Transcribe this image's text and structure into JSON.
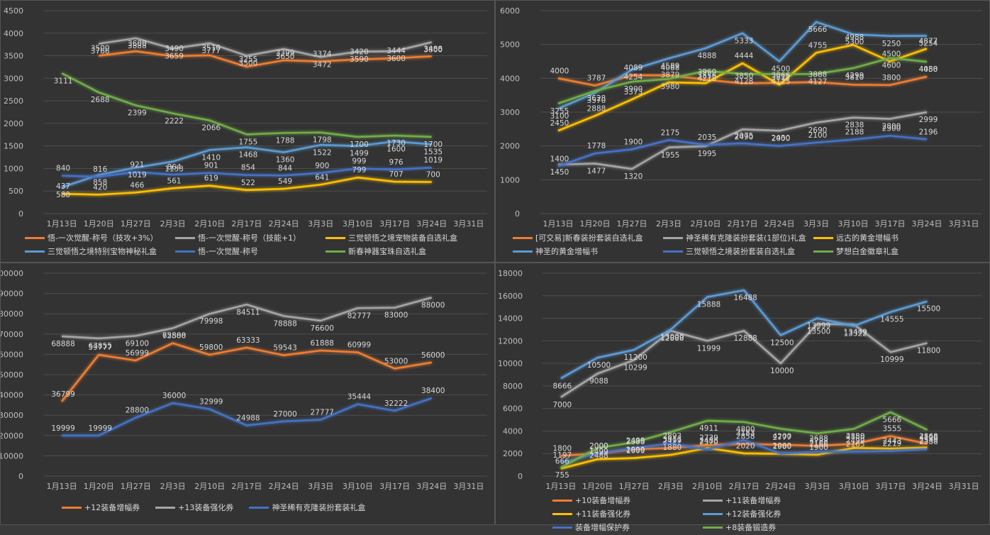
{
  "chart_data": [
    {
      "type": "line",
      "categories": [
        "1月13日",
        "1月20日",
        "1月27日",
        "2月3日",
        "2月10日",
        "2月17日",
        "2月24日",
        "3月3日",
        "3月10日",
        "3月17日",
        "3月24日",
        "3月31日"
      ],
      "ylim": [
        0,
        4500
      ],
      "yticks": [
        0,
        500,
        1000,
        1500,
        2000,
        2500,
        3000,
        3500,
        4000,
        4500
      ],
      "series": [
        {
          "name": "悟-一次觉醒-称号（技攻+3%）",
          "color": "#ed7d31",
          "values": [
            null,
            3500,
            3600,
            3490,
            3510,
            3255,
            3399,
            3374,
            3420,
            3444,
            3488,
            null
          ]
        },
        {
          "name": "悟-一次觉醒-称号（技能+1）",
          "color": "#a5a5a5",
          "values": [
            null,
            3766,
            3888,
            3659,
            3777,
            3500,
            3650,
            3472,
            3590,
            3600,
            3800,
            null
          ]
        },
        {
          "name": "三觉顿悟之境宠物装备自选礼盒",
          "color": "#ffc000",
          "values": [
            437,
            420,
            466,
            561,
            619,
            522,
            549,
            641,
            799,
            707,
            700,
            null
          ]
        },
        {
          "name": "三觉顿悟之境特别宝物神秘礼盒",
          "color": "#5b9bd5",
          "values": [
            580,
            858,
            1019,
            1153,
            1410,
            1468,
            1360,
            1522,
            1499,
            1600,
            1535,
            null
          ]
        },
        {
          "name": "悟-一次觉醒-称号",
          "color": "#4472c4",
          "values": [
            840,
            816,
            921,
            864,
            901,
            854,
            844,
            900,
            999,
            976,
            1019,
            null
          ]
        },
        {
          "name": "新春神器宝珠自选礼盒",
          "color": "#70ad47",
          "values": [
            3111,
            2688,
            2399,
            2222,
            2066,
            1755,
            1788,
            1798,
            1700,
            1730,
            1700,
            null
          ]
        }
      ]
    },
    {
      "type": "line",
      "categories": [
        "1月13日",
        "1月20日",
        "1月27日",
        "2月3日",
        "2月10日",
        "2月17日",
        "2月24日",
        "3月3日",
        "3月10日",
        "3月17日",
        "3月24日",
        "3月31日"
      ],
      "ylim": [
        0,
        6000
      ],
      "yticks": [
        0,
        1000,
        2000,
        3000,
        4000,
        5000,
        6000
      ],
      "series": [
        {
          "name": "[可交易]新春装扮套装自选礼盒",
          "color": "#ed7d31",
          "values": [
            4000,
            3787,
            4089,
            4088,
            3960,
            3850,
            3866,
            3888,
            3810,
            3800,
            4050,
            null
          ]
        },
        {
          "name": "神圣稀有克隆装扮套装(1部位)礼盒",
          "color": "#a5a5a5",
          "values": [
            1450,
            1477,
            1320,
            1955,
            1995,
            2490,
            2450,
            2690,
            2838,
            2800,
            2999,
            null
          ]
        },
        {
          "name": "远古的黄金增幅书",
          "color": "#ffc000",
          "values": [
            2450,
            2888,
            3373,
            3879,
            3856,
            4444,
            3811,
            4755,
            4988,
            4500,
            4877,
            null
          ]
        },
        {
          "name": "神圣的黄金增幅书",
          "color": "#5b9bd5",
          "values": [
            3100,
            3570,
            4254,
            4589,
            4888,
            5333,
            4500,
            5666,
            5300,
            5250,
            5254,
            null
          ]
        },
        {
          "name": "三觉顿悟之境装扮套装自选礼盒",
          "color": "#4472c4",
          "values": [
            1400,
            1778,
            1900,
            2175,
            2035,
            2075,
            2000,
            2100,
            2188,
            2300,
            2196,
            null
          ]
        },
        {
          "name": "梦想白金徽章礼盒",
          "color": "#70ad47",
          "values": [
            3255,
            3628,
            3900,
            3980,
            4218,
            4128,
            4125,
            4127,
            4299,
            4600,
            4488,
            null
          ]
        }
      ]
    },
    {
      "type": "line",
      "categories": [
        "1月13日",
        "1月20日",
        "1月27日",
        "2月3日",
        "2月10日",
        "2月17日",
        "2月24日",
        "3月3日",
        "3月10日",
        "3月17日",
        "3月24日",
        "3月31日"
      ],
      "ylim": [
        0,
        100000
      ],
      "yticks": [
        0,
        10000,
        20000,
        30000,
        40000,
        50000,
        60000,
        70000,
        80000,
        90000,
        100000
      ],
      "series": [
        {
          "name": "+12装备增幅券",
          "color": "#ed7d31",
          "values": [
            36799,
            59777,
            56999,
            65500,
            59800,
            63333,
            59543,
            61888,
            60999,
            53000,
            56000,
            null
          ]
        },
        {
          "name": "+13装备强化券",
          "color": "#a5a5a5",
          "values": [
            68888,
            67855,
            69100,
            72888,
            79998,
            84511,
            78888,
            76600,
            82777,
            83000,
            88000,
            null
          ]
        },
        {
          "name": "神圣稀有克隆装扮套装礼盒",
          "color": "#4472c4",
          "values": [
            19999,
            19999,
            28800,
            36000,
            32999,
            24988,
            27000,
            27777,
            35444,
            32222,
            38400,
            null
          ]
        }
      ]
    },
    {
      "type": "line",
      "categories": [
        "1月13日",
        "1月20日",
        "1月27日",
        "2月3日",
        "2月10日",
        "2月17日",
        "2月24日",
        "3月3日",
        "3月10日",
        "3月17日",
        "3月24日",
        "3月31日"
      ],
      "ylim": [
        0,
        18000
      ],
      "yticks": [
        0,
        2000,
        4000,
        6000,
        8000,
        10000,
        12000,
        14000,
        16000,
        18000
      ],
      "series": [
        {
          "name": "+10装备增幅券",
          "color": "#ed7d31",
          "values": [
            1800,
            2000,
            2388,
            2499,
            2739,
            2858,
            2777,
            2688,
            2850,
            3555,
            2868,
            null
          ]
        },
        {
          "name": "+11装备增幅券",
          "color": "#a5a5a5",
          "values": [
            7000,
            9088,
            10299,
            12888,
            11999,
            12888,
            10000,
            13500,
            13449,
            10999,
            11800,
            null
          ]
        },
        {
          "name": "+11装备强化券",
          "color": "#ffc000",
          "values": [
            666,
            1499,
            1600,
            1880,
            2488,
            2020,
            1980,
            1900,
            2499,
            2443,
            2540,
            null
          ]
        },
        {
          "name": "+12装备强化券",
          "color": "#5b9bd5",
          "values": [
            8666,
            10500,
            11200,
            13000,
            15888,
            16488,
            12500,
            13999,
            13322,
            14555,
            15500,
            null
          ]
        },
        {
          "name": "装备增幅保护券",
          "color": "#4472c4",
          "values": [
            1197,
            2000,
            2499,
            2893,
            2370,
            3183,
            2000,
            2166,
            2165,
            2219,
            2388,
            null
          ]
        },
        {
          "name": "+8装备锻造券",
          "color": "#70ad47",
          "values": [
            755,
            2488,
            2999,
            3911,
            4911,
            4800,
            4200,
            3788,
            4188,
            5666,
            4100,
            null
          ]
        }
      ]
    }
  ]
}
